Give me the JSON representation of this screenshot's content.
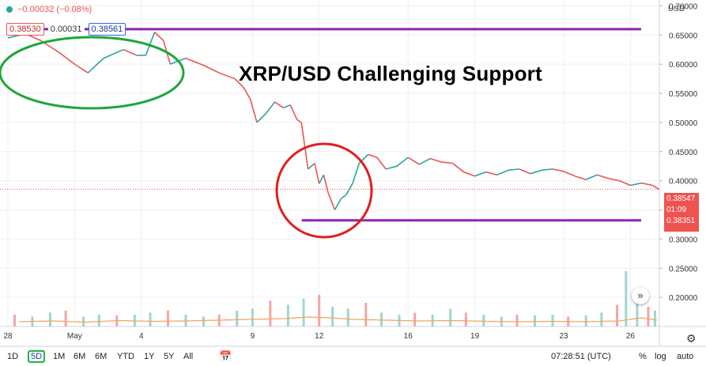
{
  "header": {
    "change_text": "−0.00032 (−0.08%)",
    "bid": "0.38530",
    "spread": "0.00031",
    "ask": "0.38561",
    "currency": "USD"
  },
  "headline": "XRP/USD Challenging Support",
  "last_price_label": {
    "price": "0.38547",
    "countdown": "01:09",
    "low": "0.38351"
  },
  "toolbar": {
    "ranges": [
      "1D",
      "5D",
      "1M",
      "6M",
      "YTD",
      "1Y",
      "5Y",
      "All"
    ],
    "active_range": "5D",
    "clock": "07:28:51 (UTC)",
    "percent_label": "%",
    "log_label": "log",
    "auto_label": "auto"
  },
  "colors": {
    "up": "#26a69a",
    "down": "#ef5350",
    "annotation_line": "#8e24aa",
    "highlight_green": "#1fa63a",
    "highlight_red": "#e11d1d",
    "volume_ma": "#f4a460",
    "price_line": "#ef5350"
  },
  "icons": {
    "calendar": "calendar-range-icon",
    "settings": "gear-icon",
    "scroll": "double-chevron-right-icon"
  },
  "chart_data": {
    "type": "line",
    "title": "XRP/USD Challenging Support",
    "xlabel": "",
    "ylabel": "",
    "ylim": [
      0.15,
      0.71
    ],
    "y_ticks": [
      "0.70000",
      "0.65000",
      "0.60000",
      "0.55000",
      "0.50000",
      "0.45000",
      "0.40000",
      "0.35000",
      "0.30000",
      "0.25000",
      "0.20000"
    ],
    "y_tick_values": [
      0.7,
      0.65,
      0.6,
      0.55,
      0.5,
      0.45,
      0.4,
      0.35,
      0.3,
      0.25,
      0.2
    ],
    "x_ticks": [
      {
        "label": "28",
        "day": 0
      },
      {
        "label": "May",
        "day": 3
      },
      {
        "label": "4",
        "day": 6
      },
      {
        "label": "9",
        "day": 11
      },
      {
        "label": "12",
        "day": 14
      },
      {
        "label": "16",
        "day": 18
      },
      {
        "label": "19",
        "day": 21
      },
      {
        "label": "23",
        "day": 25
      },
      {
        "label": "26",
        "day": 28
      }
    ],
    "xlim_days": [
      0,
      29.3
    ],
    "series": [
      {
        "days": [
          0,
          0.8,
          1.5,
          2.3,
          3.0,
          3.6,
          4.3,
          5.2,
          5.8,
          6.2,
          6.6,
          7.0,
          7.3,
          8.0,
          8.8,
          9.5,
          10.2,
          10.6,
          10.9,
          11.2,
          11.6,
          12.0,
          12.4,
          12.7,
          13.0,
          13.2,
          13.5,
          13.8,
          14.0,
          14.2,
          14.4,
          14.7,
          15.0,
          15.2,
          15.5,
          15.8,
          16.2,
          16.6,
          17.0,
          17.5,
          18.0,
          18.5,
          19.0,
          19.5,
          20.0,
          20.5,
          21.0,
          21.5,
          22.0,
          22.5,
          23.0,
          23.5,
          24.0,
          24.5,
          25.0,
          25.5,
          26.0,
          26.5,
          27.0,
          27.5,
          28.0,
          28.5,
          29.0,
          29.3
        ],
        "values": [
          0.645,
          0.652,
          0.64,
          0.62,
          0.6,
          0.585,
          0.61,
          0.625,
          0.615,
          0.615,
          0.655,
          0.64,
          0.6,
          0.61,
          0.598,
          0.585,
          0.575,
          0.56,
          0.54,
          0.5,
          0.515,
          0.535,
          0.525,
          0.53,
          0.505,
          0.5,
          0.42,
          0.43,
          0.395,
          0.41,
          0.38,
          0.35,
          0.37,
          0.375,
          0.395,
          0.43,
          0.445,
          0.44,
          0.42,
          0.425,
          0.44,
          0.428,
          0.438,
          0.432,
          0.43,
          0.415,
          0.408,
          0.415,
          0.41,
          0.418,
          0.42,
          0.412,
          0.418,
          0.42,
          0.416,
          0.408,
          0.402,
          0.41,
          0.404,
          0.4,
          0.392,
          0.396,
          0.392,
          0.385
        ]
      }
    ],
    "volume": {
      "days": [
        0.3,
        1.1,
        1.9,
        2.6,
        3.4,
        4.1,
        4.9,
        5.7,
        6.4,
        7.2,
        8.0,
        8.8,
        9.5,
        10.3,
        11.0,
        11.8,
        12.6,
        13.3,
        14.0,
        14.6,
        15.3,
        16.1,
        16.8,
        17.6,
        18.3,
        19.1,
        19.9,
        20.6,
        21.4,
        22.2,
        22.9,
        23.7,
        24.5,
        25.2,
        26.0,
        26.7,
        27.4,
        27.8,
        28.3,
        28.8,
        29.1
      ],
      "values": [
        30,
        25,
        35,
        40,
        25,
        30,
        28,
        30,
        35,
        40,
        30,
        25,
        30,
        40,
        45,
        65,
        55,
        70,
        80,
        50,
        45,
        60,
        35,
        30,
        35,
        30,
        45,
        35,
        30,
        25,
        30,
        28,
        30,
        25,
        28,
        35,
        55,
        140,
        65,
        50,
        40
      ]
    },
    "volume_ma": {
      "days": [
        0.5,
        2,
        3.5,
        5,
        6.5,
        8,
        9.5,
        11,
        12.5,
        13.5,
        14.5,
        15.5,
        17,
        18.5,
        20,
        21.5,
        23,
        24.5,
        26,
        27.5,
        28.5,
        29.2
      ],
      "values": [
        12,
        14,
        11,
        15,
        13,
        14,
        16,
        18,
        20,
        24,
        22,
        18,
        16,
        14,
        15,
        13,
        12,
        13,
        12,
        14,
        22,
        16
      ]
    },
    "annotations": [
      {
        "kind": "horizontal_line",
        "price": 0.66,
        "color": "#8e24aa"
      },
      {
        "kind": "horizontal_line",
        "price": 0.332,
        "color": "#8e24aa"
      },
      {
        "kind": "horizontal_dotted_line",
        "price": 0.3855,
        "color": "#ef5350"
      }
    ]
  }
}
